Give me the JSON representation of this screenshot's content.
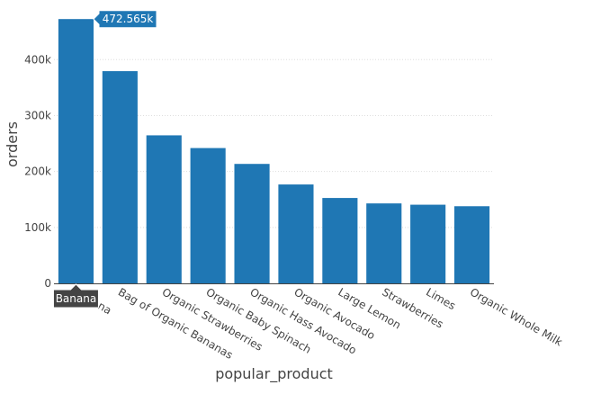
{
  "chart_data": {
    "type": "bar",
    "title": "",
    "xlabel": "popular_product",
    "ylabel": "orders",
    "categories": [
      "Banana",
      "Bag of Organic Bananas",
      "Organic Strawberries",
      "Organic Baby Spinach",
      "Organic Hass Avocado",
      "Organic Avocado",
      "Large Lemon",
      "Strawberries",
      "Limes",
      "Organic Whole Milk"
    ],
    "values": [
      472565,
      379450,
      264683,
      241921,
      213584,
      176815,
      152657,
      142951,
      140627,
      137905
    ],
    "ylim": [
      0,
      497000
    ],
    "yticks": [
      0,
      100000,
      200000,
      300000,
      400000
    ],
    "ytick_labels": [
      "0",
      "100k",
      "200k",
      "300k",
      "400k"
    ],
    "grid": "horizontal",
    "bar_color": "#1f77b4",
    "hover": {
      "category": "Banana",
      "value_label": "472.565k",
      "category_label": "Banana"
    }
  }
}
